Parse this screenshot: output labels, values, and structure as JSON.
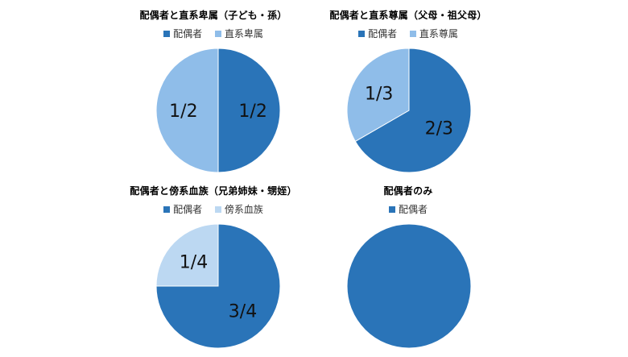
{
  "chart_data": [
    {
      "type": "pie",
      "title": "配偶者と直系卑属（子ども・孫）",
      "series": [
        {
          "name": "配偶者",
          "value": 0.5,
          "label": "1/2",
          "color": "#2a74b8"
        },
        {
          "name": "直系卑属",
          "value": 0.5,
          "label": "1/2",
          "color": "#8fbde9"
        }
      ],
      "legend_position": "top"
    },
    {
      "type": "pie",
      "title": "配偶者と直系尊属（父母・祖父母）",
      "series": [
        {
          "name": "配偶者",
          "value": 0.6667,
          "label": "2/3",
          "color": "#2a74b8"
        },
        {
          "name": "直系尊属",
          "value": 0.3333,
          "label": "1/3",
          "color": "#8fbde9"
        }
      ],
      "legend_position": "top"
    },
    {
      "type": "pie",
      "title": "配偶者と傍系血族（兄弟姉妹・甥姪）",
      "series": [
        {
          "name": "配偶者",
          "value": 0.75,
          "label": "3/4",
          "color": "#2a74b8"
        },
        {
          "name": "傍系血族",
          "value": 0.25,
          "label": "1/4",
          "color": "#bcd8f2"
        }
      ],
      "legend_position": "top"
    },
    {
      "type": "pie",
      "title": "配偶者のみ",
      "series": [
        {
          "name": "配偶者",
          "value": 1,
          "label": "",
          "color": "#2a74b8"
        }
      ],
      "legend_position": "top"
    }
  ]
}
